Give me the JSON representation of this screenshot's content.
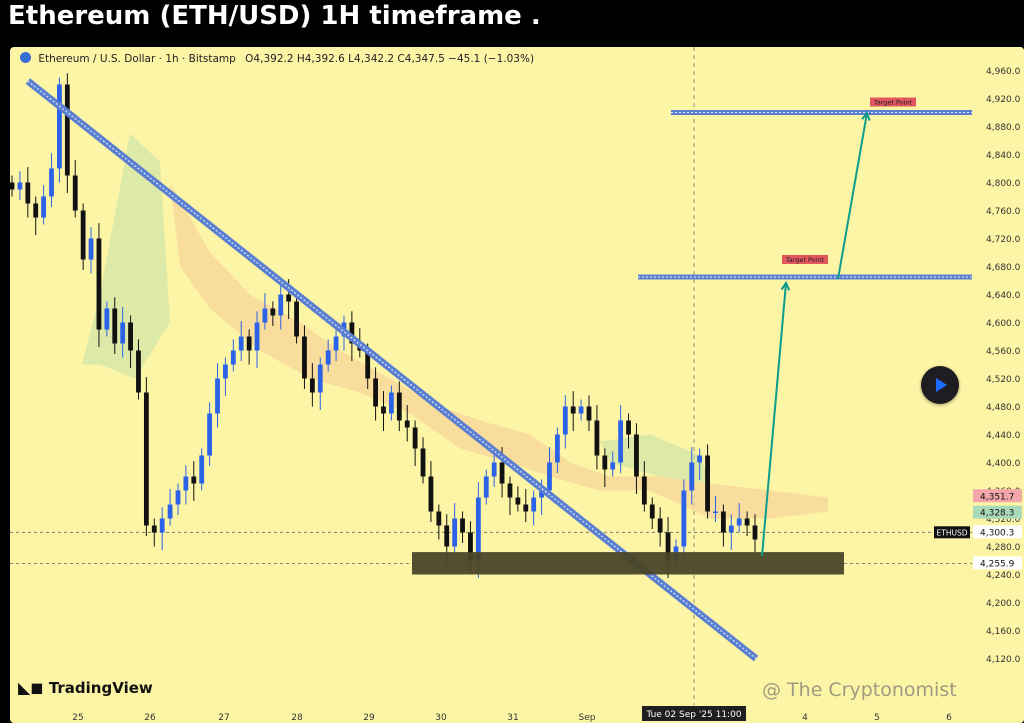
{
  "title": "Ethereum (ETH/USD) 1H timeframe .",
  "header": {
    "symbol": "Ethereum / U.S. Dollar · 1h · Bitstamp",
    "ohlc": "O4,392.2 H4,392.6 L4,342.2 C4,347.5 −45.1 (−1.03%)"
  },
  "watermark": "@ The Cryptonomist",
  "brand": "TradingView",
  "colors": {
    "up": "#2b62e8",
    "down": "#111111",
    "trendline": "#5b7fd0",
    "zone": "#4a4427",
    "arrow": "#0c9d8d",
    "target": "#e2565e"
  },
  "icons": {
    "play": "play-icon",
    "symbol_logo": "ethereum-logo-icon"
  },
  "chart_data": {
    "type": "candlestick",
    "ylim": [
      4100,
      4990
    ],
    "yticks": [
      "4,960.0",
      "4,920.0",
      "4,880.0",
      "4,840.0",
      "4,800.0",
      "4,760.0",
      "4,720.0",
      "4,680.0",
      "4,640.0",
      "4,600.0",
      "4,560.0",
      "4,520.0",
      "4,480.0",
      "4,440.0",
      "4,400.0",
      "4,360.0",
      "4,320.0",
      "4,280.0",
      "4,240.0",
      "4,200.0",
      "4,160.0",
      "4,120.0"
    ],
    "xticks": [
      "25",
      "26",
      "27",
      "28",
      "29",
      "30",
      "31",
      "Sep",
      "4",
      "5",
      "6"
    ],
    "crosshair_label": "Tue 02 Sep '25   11:00",
    "price_labels": [
      {
        "text": "4,351.7",
        "value": 4351.7,
        "color": "#f4a7aa"
      },
      {
        "text": "4,328.3",
        "value": 4328.3,
        "color": "#a9d9b8"
      },
      {
        "text": "4,300.3",
        "value": 4300.3,
        "color": "#ffffff"
      },
      {
        "text": "4,255.9",
        "value": 4255.9,
        "color": "#ffffff"
      }
    ],
    "last_label": "ETHUSD",
    "target_label": "Target Point",
    "targets": [
      4900,
      4665
    ],
    "support_zone": [
      4240,
      4272
    ],
    "trendline": [
      [
        2,
        4945
      ],
      [
        54,
        4120
      ]
    ],
    "closes": [
      4790,
      4800,
      4770,
      4750,
      4780,
      4820,
      4940,
      4810,
      4760,
      4690,
      4720,
      4590,
      4620,
      4570,
      4600,
      4560,
      4500,
      4310,
      4300,
      4320,
      4340,
      4360,
      4380,
      4370,
      4410,
      4470,
      4520,
      4540,
      4560,
      4580,
      4560,
      4600,
      4620,
      4610,
      4640,
      4630,
      4580,
      4520,
      4500,
      4540,
      4560,
      4580,
      4600,
      4570,
      4560,
      4520,
      4480,
      4470,
      4500,
      4460,
      4450,
      4420,
      4380,
      4330,
      4310,
      4280,
      4320,
      4300,
      4260,
      4350,
      4380,
      4400,
      4370,
      4350,
      4340,
      4330,
      4350,
      4360,
      4400,
      4440,
      4480,
      4470,
      4480,
      4460,
      4410,
      4390,
      4400,
      4460,
      4440,
      4380,
      4340,
      4320,
      4300,
      4260,
      4280,
      4360,
      4400,
      4410,
      4330,
      4330,
      4300,
      4310,
      4320,
      4310,
      4290
    ]
  }
}
